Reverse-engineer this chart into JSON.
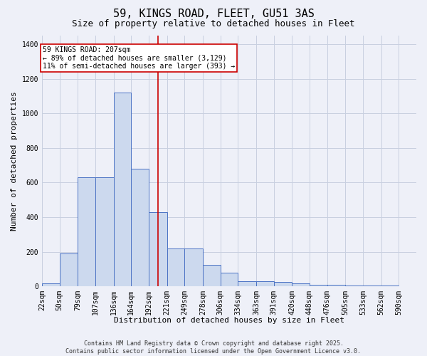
{
  "title_line1": "59, KINGS ROAD, FLEET, GU51 3AS",
  "title_line2": "Size of property relative to detached houses in Fleet",
  "xlabel": "Distribution of detached houses by size in Fleet",
  "ylabel": "Number of detached properties",
  "bar_values": [
    15,
    190,
    630,
    630,
    1120,
    680,
    430,
    220,
    220,
    125,
    80,
    30,
    30,
    25,
    15,
    10,
    10,
    5,
    5,
    3
  ],
  "bin_edges": [
    22,
    50,
    79,
    107,
    136,
    164,
    192,
    221,
    249,
    278,
    306,
    334,
    363,
    391,
    420,
    448,
    476,
    505,
    533,
    562,
    590
  ],
  "tick_labels": [
    "22sqm",
    "50sqm",
    "79sqm",
    "107sqm",
    "136sqm",
    "164sqm",
    "192sqm",
    "221sqm",
    "249sqm",
    "278sqm",
    "306sqm",
    "334sqm",
    "363sqm",
    "391sqm",
    "420sqm",
    "448sqm",
    "476sqm",
    "505sqm",
    "533sqm",
    "562sqm",
    "590sqm"
  ],
  "bar_color": "#ccd9ee",
  "bar_edge_color": "#4a72c4",
  "grid_color": "#c8d0e0",
  "background_color": "#eef0f8",
  "vline_x": 207,
  "vline_color": "#cc0000",
  "annotation_text": "59 KINGS ROAD: 207sqm\n← 89% of detached houses are smaller (3,129)\n11% of semi-detached houses are larger (393) →",
  "annotation_box_color": "#ffffff",
  "annotation_border_color": "#cc0000",
  "ylim": [
    0,
    1450
  ],
  "yticks": [
    0,
    200,
    400,
    600,
    800,
    1000,
    1200,
    1400
  ],
  "footnote": "Contains HM Land Registry data © Crown copyright and database right 2025.\nContains public sector information licensed under the Open Government Licence v3.0.",
  "title_fontsize": 11,
  "subtitle_fontsize": 9,
  "axis_label_fontsize": 8,
  "tick_fontsize": 7,
  "annot_fontsize": 7,
  "footnote_fontsize": 6
}
